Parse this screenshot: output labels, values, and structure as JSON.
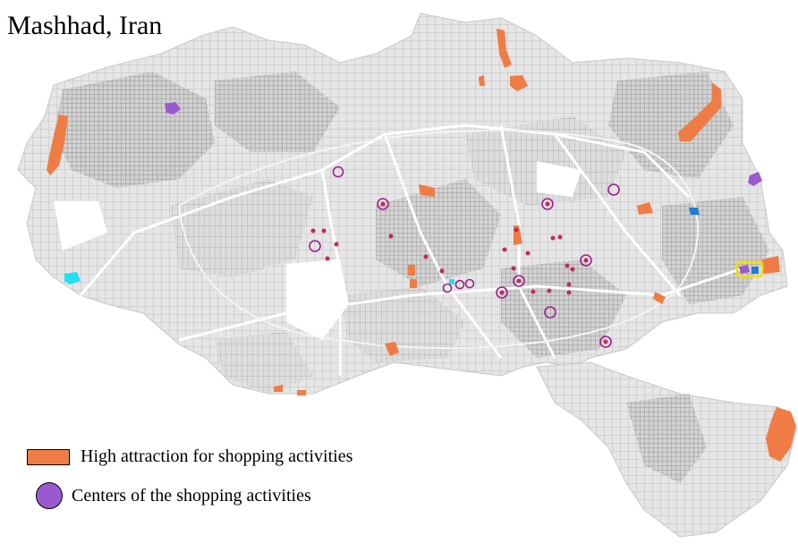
{
  "title": "Mashhad, Iran",
  "colors": {
    "background": "#ffffff",
    "urban_fill": "#e3e3e3",
    "street": "#b9b9b9",
    "dense_block": "#8e8e8e",
    "high_attraction": "#f07c45",
    "centers": "#9b59d0",
    "center_ring": "#a0208a",
    "center_point": "#c02a5a",
    "cyan_patch": "#22e0f0",
    "blue_patch": "#1e7fd0",
    "yellow_outline": "#f2e000"
  },
  "legend": [
    {
      "label": "High attraction for shopping activities",
      "symbol": "orange-rectangle"
    },
    {
      "label": "Centers of the shopping activities",
      "symbol": "purple-circle"
    }
  ]
}
